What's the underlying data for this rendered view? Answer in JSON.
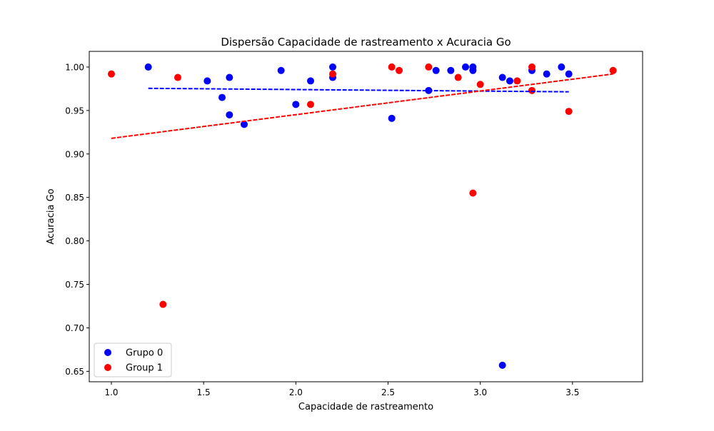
{
  "chart_data": {
    "type": "scatter",
    "title": "Dispersão Capacidade de rastreamento x Acuracia Go",
    "xlabel": "Capacidade de rastreamento",
    "ylabel": "Acuracia Go",
    "xlim": [
      0.88,
      3.88
    ],
    "ylim": [
      0.638,
      1.018
    ],
    "xticks": [
      1.0,
      1.5,
      2.0,
      2.5,
      3.0,
      3.5
    ],
    "xtick_labels": [
      "1.0",
      "1.5",
      "2.0",
      "2.5",
      "3.0",
      "3.5"
    ],
    "yticks": [
      0.65,
      0.7,
      0.75,
      0.8,
      0.85,
      0.9,
      0.95,
      1.0
    ],
    "ytick_labels": [
      "0.65",
      "0.70",
      "0.75",
      "0.80",
      "0.85",
      "0.90",
      "0.95",
      "1.00"
    ],
    "grid": false,
    "legend_position": "lower-left",
    "series": [
      {
        "name": "Grupo 0",
        "color": "#0000ff",
        "points": [
          {
            "x": 1.2,
            "y": 1.0
          },
          {
            "x": 1.52,
            "y": 0.984
          },
          {
            "x": 1.6,
            "y": 0.965
          },
          {
            "x": 1.64,
            "y": 0.988
          },
          {
            "x": 1.64,
            "y": 0.945
          },
          {
            "x": 1.72,
            "y": 0.934
          },
          {
            "x": 1.92,
            "y": 0.996
          },
          {
            "x": 2.0,
            "y": 0.957
          },
          {
            "x": 2.08,
            "y": 0.984
          },
          {
            "x": 2.2,
            "y": 1.0
          },
          {
            "x": 2.2,
            "y": 0.988
          },
          {
            "x": 2.52,
            "y": 0.941
          },
          {
            "x": 2.72,
            "y": 0.973
          },
          {
            "x": 2.76,
            "y": 0.996
          },
          {
            "x": 2.84,
            "y": 0.996
          },
          {
            "x": 2.92,
            "y": 1.0
          },
          {
            "x": 2.96,
            "y": 1.0
          },
          {
            "x": 2.96,
            "y": 0.996
          },
          {
            "x": 3.12,
            "y": 0.988
          },
          {
            "x": 3.12,
            "y": 0.657
          },
          {
            "x": 3.16,
            "y": 0.984
          },
          {
            "x": 3.28,
            "y": 0.996
          },
          {
            "x": 3.36,
            "y": 0.992
          },
          {
            "x": 3.44,
            "y": 1.0
          },
          {
            "x": 3.48,
            "y": 0.992
          }
        ],
        "trendline": {
          "x": [
            1.2,
            3.48
          ],
          "y": [
            0.9755,
            0.9715
          ]
        }
      },
      {
        "name": "Group 1",
        "color": "#ff0000",
        "points": [
          {
            "x": 1.0,
            "y": 0.992
          },
          {
            "x": 1.28,
            "y": 0.727
          },
          {
            "x": 1.36,
            "y": 0.988
          },
          {
            "x": 2.08,
            "y": 0.957
          },
          {
            "x": 2.2,
            "y": 0.992
          },
          {
            "x": 2.52,
            "y": 1.0
          },
          {
            "x": 2.56,
            "y": 0.996
          },
          {
            "x": 2.72,
            "y": 1.0
          },
          {
            "x": 2.88,
            "y": 0.988
          },
          {
            "x": 2.96,
            "y": 0.855
          },
          {
            "x": 3.0,
            "y": 0.98
          },
          {
            "x": 3.2,
            "y": 0.984
          },
          {
            "x": 3.28,
            "y": 1.0
          },
          {
            "x": 3.28,
            "y": 0.973
          },
          {
            "x": 3.48,
            "y": 0.949
          },
          {
            "x": 3.72,
            "y": 0.996
          }
        ],
        "trendline": {
          "x": [
            1.0,
            3.72
          ],
          "y": [
            0.918,
            0.992
          ]
        }
      }
    ]
  }
}
